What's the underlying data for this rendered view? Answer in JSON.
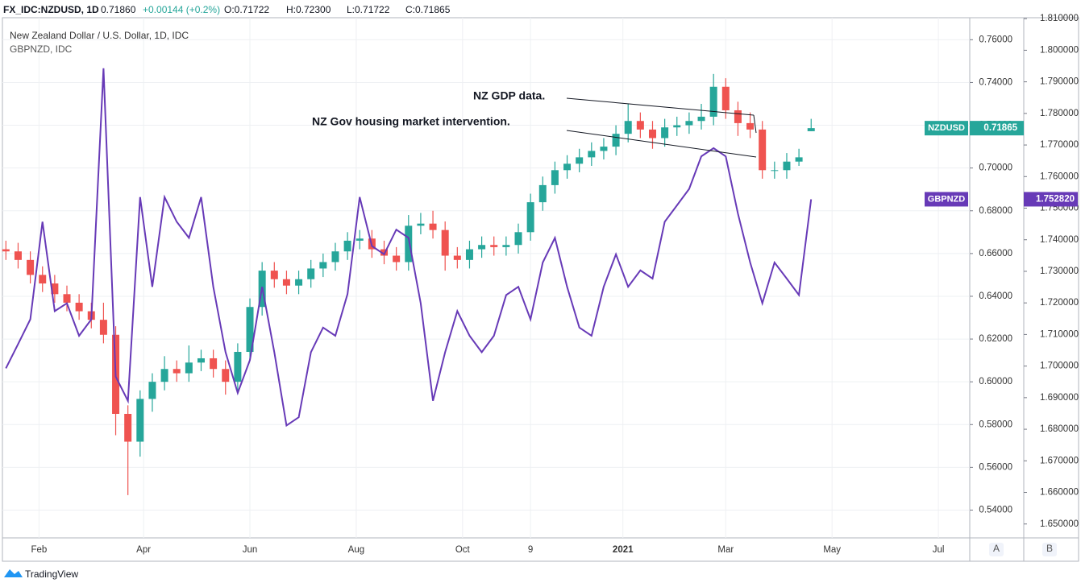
{
  "header": {
    "symbol": "FX_IDC:NZDUSD, 1D",
    "last": "0.71860",
    "change": "+0.00144 (+0.2%)",
    "open": "O:0.71722",
    "high": "H:0.72300",
    "low": "L:0.71722",
    "close": "C:0.71865"
  },
  "footer": "TradingView",
  "axis_buttons": [
    "A",
    "B"
  ],
  "chart_data": {
    "type": "candlestick",
    "title": "New Zealand Dollar / U.S. Dollar, 1D, IDC",
    "subtitle": "GBPNZD, IDC",
    "annotations": [
      "NZ GDP data.",
      "NZ Gov housing market intervention."
    ],
    "x": [
      12,
      19,
      26,
      33,
      40,
      47,
      54,
      61,
      68,
      75,
      82,
      89,
      96,
      103,
      110,
      117,
      124,
      131,
      138,
      145,
      152,
      159,
      166,
      173,
      180,
      187,
      194,
      201,
      208,
      215,
      222,
      229,
      236,
      243,
      250,
      257,
      264,
      271,
      278,
      285,
      292,
      299,
      306,
      313,
      320,
      327,
      334,
      341,
      348,
      355,
      362,
      369,
      376,
      383,
      390,
      397,
      404,
      411,
      418,
      425,
      432,
      439,
      446,
      453,
      460,
      467,
      474
    ],
    "xlim": [
      10,
      565
    ],
    "xticks": [
      {
        "value": 31,
        "label": "Feb"
      },
      {
        "value": 91,
        "label": "Apr"
      },
      {
        "value": 152,
        "label": "Jun"
      },
      {
        "value": 213,
        "label": "Aug"
      },
      {
        "value": 274,
        "label": "Oct"
      },
      {
        "value": 313,
        "label": "9"
      },
      {
        "value": 366,
        "label": "2021"
      },
      {
        "value": 425,
        "label": "Mar"
      },
      {
        "value": 486,
        "label": "May"
      },
      {
        "value": 547,
        "label": "Jul"
      }
    ],
    "ylim": [
      0.527,
      0.7703
    ],
    "yticks": [
      {
        "value": 0.54,
        "label": "0.54000"
      },
      {
        "value": 0.56,
        "label": "0.56000"
      },
      {
        "value": 0.58,
        "label": "0.58000"
      },
      {
        "value": 0.6,
        "label": "0.60000"
      },
      {
        "value": 0.62,
        "label": "0.62000"
      },
      {
        "value": 0.64,
        "label": "0.64000"
      },
      {
        "value": 0.66,
        "label": "0.66000"
      },
      {
        "value": 0.68,
        "label": "0.68000"
      },
      {
        "value": 0.7,
        "label": "0.70000"
      },
      {
        "value": 0.72,
        "label": "0.72000"
      },
      {
        "value": 0.74,
        "label": "0.74000"
      },
      {
        "value": 0.76,
        "label": "0.76000"
      }
    ],
    "y2lim": [
      1.6456,
      1.8103
    ],
    "y2ticks": [
      {
        "value": 1.65,
        "label": "1.650000"
      },
      {
        "value": 1.66,
        "label": "1.660000"
      },
      {
        "value": 1.67,
        "label": "1.670000"
      },
      {
        "value": 1.68,
        "label": "1.680000"
      },
      {
        "value": 1.69,
        "label": "1.690000"
      },
      {
        "value": 1.7,
        "label": "1.700000"
      },
      {
        "value": 1.71,
        "label": "1.710000"
      },
      {
        "value": 1.72,
        "label": "1.720000"
      },
      {
        "value": 1.73,
        "label": "1.730000"
      },
      {
        "value": 1.74,
        "label": "1.740000"
      },
      {
        "value": 1.75,
        "label": "1.750000"
      },
      {
        "value": 1.76,
        "label": "1.760000"
      },
      {
        "value": 1.77,
        "label": "1.770000"
      },
      {
        "value": 1.78,
        "label": "1.780000"
      },
      {
        "value": 1.79,
        "label": "1.790000"
      },
      {
        "value": 1.8,
        "label": "1.800000"
      },
      {
        "value": 1.81,
        "label": "1.810000"
      }
    ],
    "grid": true,
    "series": [
      {
        "name": "NZDUSD",
        "type": "candlestick",
        "up_color": "#26a69a",
        "down_color": "#ef5350",
        "open": [
          0.662,
          0.661,
          0.657,
          0.65,
          0.646,
          0.641,
          0.637,
          0.633,
          0.629,
          0.622,
          0.585,
          0.572,
          0.592,
          0.6,
          0.606,
          0.604,
          0.609,
          0.611,
          0.606,
          0.6,
          0.614,
          0.635,
          0.652,
          0.648,
          0.645,
          0.648,
          0.653,
          0.656,
          0.661,
          0.666,
          0.667,
          0.662,
          0.659,
          0.656,
          0.673,
          0.674,
          0.671,
          0.659,
          0.657,
          0.662,
          0.664,
          0.663,
          0.664,
          0.67,
          0.684,
          0.692,
          0.699,
          0.702,
          0.705,
          0.708,
          0.71,
          0.716,
          0.722,
          0.718,
          0.714,
          0.719,
          0.72,
          0.722,
          0.724,
          0.738,
          0.727,
          0.721,
          0.718,
          0.699,
          0.699,
          0.703,
          0.71722
        ],
        "high": [
          0.666,
          0.665,
          0.661,
          0.654,
          0.65,
          0.645,
          0.641,
          0.637,
          0.637,
          0.626,
          0.589,
          0.596,
          0.604,
          0.612,
          0.61,
          0.617,
          0.615,
          0.615,
          0.61,
          0.618,
          0.639,
          0.656,
          0.656,
          0.652,
          0.652,
          0.657,
          0.66,
          0.665,
          0.67,
          0.671,
          0.671,
          0.666,
          0.663,
          0.678,
          0.679,
          0.68,
          0.675,
          0.663,
          0.666,
          0.668,
          0.668,
          0.668,
          0.674,
          0.688,
          0.696,
          0.703,
          0.706,
          0.709,
          0.712,
          0.714,
          0.72,
          0.73,
          0.726,
          0.722,
          0.723,
          0.724,
          0.726,
          0.73,
          0.744,
          0.742,
          0.731,
          0.726,
          0.722,
          0.703,
          0.707,
          0.709,
          0.723
        ],
        "low": [
          0.657,
          0.653,
          0.646,
          0.642,
          0.637,
          0.633,
          0.629,
          0.625,
          0.618,
          0.575,
          0.547,
          0.565,
          0.586,
          0.596,
          0.6,
          0.6,
          0.605,
          0.602,
          0.594,
          0.596,
          0.61,
          0.631,
          0.644,
          0.641,
          0.641,
          0.644,
          0.649,
          0.652,
          0.657,
          0.662,
          0.658,
          0.655,
          0.652,
          0.652,
          0.669,
          0.667,
          0.652,
          0.653,
          0.653,
          0.658,
          0.659,
          0.659,
          0.66,
          0.666,
          0.68,
          0.688,
          0.695,
          0.698,
          0.701,
          0.704,
          0.706,
          0.712,
          0.714,
          0.709,
          0.71,
          0.715,
          0.716,
          0.718,
          0.72,
          0.723,
          0.715,
          0.714,
          0.695,
          0.695,
          0.695,
          0.701,
          0.71722
        ],
        "close": [
          0.661,
          0.657,
          0.65,
          0.646,
          0.641,
          0.637,
          0.633,
          0.629,
          0.622,
          0.585,
          0.572,
          0.592,
          0.6,
          0.606,
          0.604,
          0.609,
          0.611,
          0.606,
          0.6,
          0.614,
          0.635,
          0.652,
          0.648,
          0.645,
          0.648,
          0.653,
          0.656,
          0.661,
          0.666,
          0.667,
          0.662,
          0.659,
          0.656,
          0.673,
          0.674,
          0.671,
          0.659,
          0.657,
          0.662,
          0.664,
          0.663,
          0.664,
          0.67,
          0.684,
          0.692,
          0.699,
          0.702,
          0.705,
          0.708,
          0.71,
          0.716,
          0.722,
          0.718,
          0.714,
          0.719,
          0.72,
          0.722,
          0.724,
          0.738,
          0.727,
          0.721,
          0.718,
          0.699,
          0.699,
          0.703,
          0.705,
          0.71865
        ]
      },
      {
        "name": "GBPNZD",
        "type": "line",
        "axis": "y2",
        "color": "#673ab7",
        "last_value_label": "1.752820",
        "values": [
          1.6993,
          1.707,
          1.7148,
          1.7457,
          1.7174,
          1.7199,
          1.7096,
          1.7148,
          1.7943,
          1.6967,
          1.689,
          1.7535,
          1.7251,
          1.7535,
          1.7457,
          1.7406,
          1.7535,
          1.7251,
          1.7044,
          1.6915,
          1.7019,
          1.7251,
          1.7044,
          1.6812,
          1.6838,
          1.7044,
          1.7122,
          1.7096,
          1.7228,
          1.7535,
          1.738,
          1.7354,
          1.7432,
          1.7406,
          1.7199,
          1.689,
          1.7044,
          1.7174,
          1.7096,
          1.7044,
          1.7096,
          1.7225,
          1.7251,
          1.7148,
          1.7328,
          1.7406,
          1.7251,
          1.7122,
          1.7096,
          1.7251,
          1.7354,
          1.7251,
          1.7303,
          1.7277,
          1.7457,
          1.7509,
          1.7561,
          1.7664,
          1.769,
          1.7664,
          1.7483,
          1.7328,
          1.7199,
          1.7328,
          1.7277,
          1.7225,
          1.75282
        ]
      }
    ]
  }
}
